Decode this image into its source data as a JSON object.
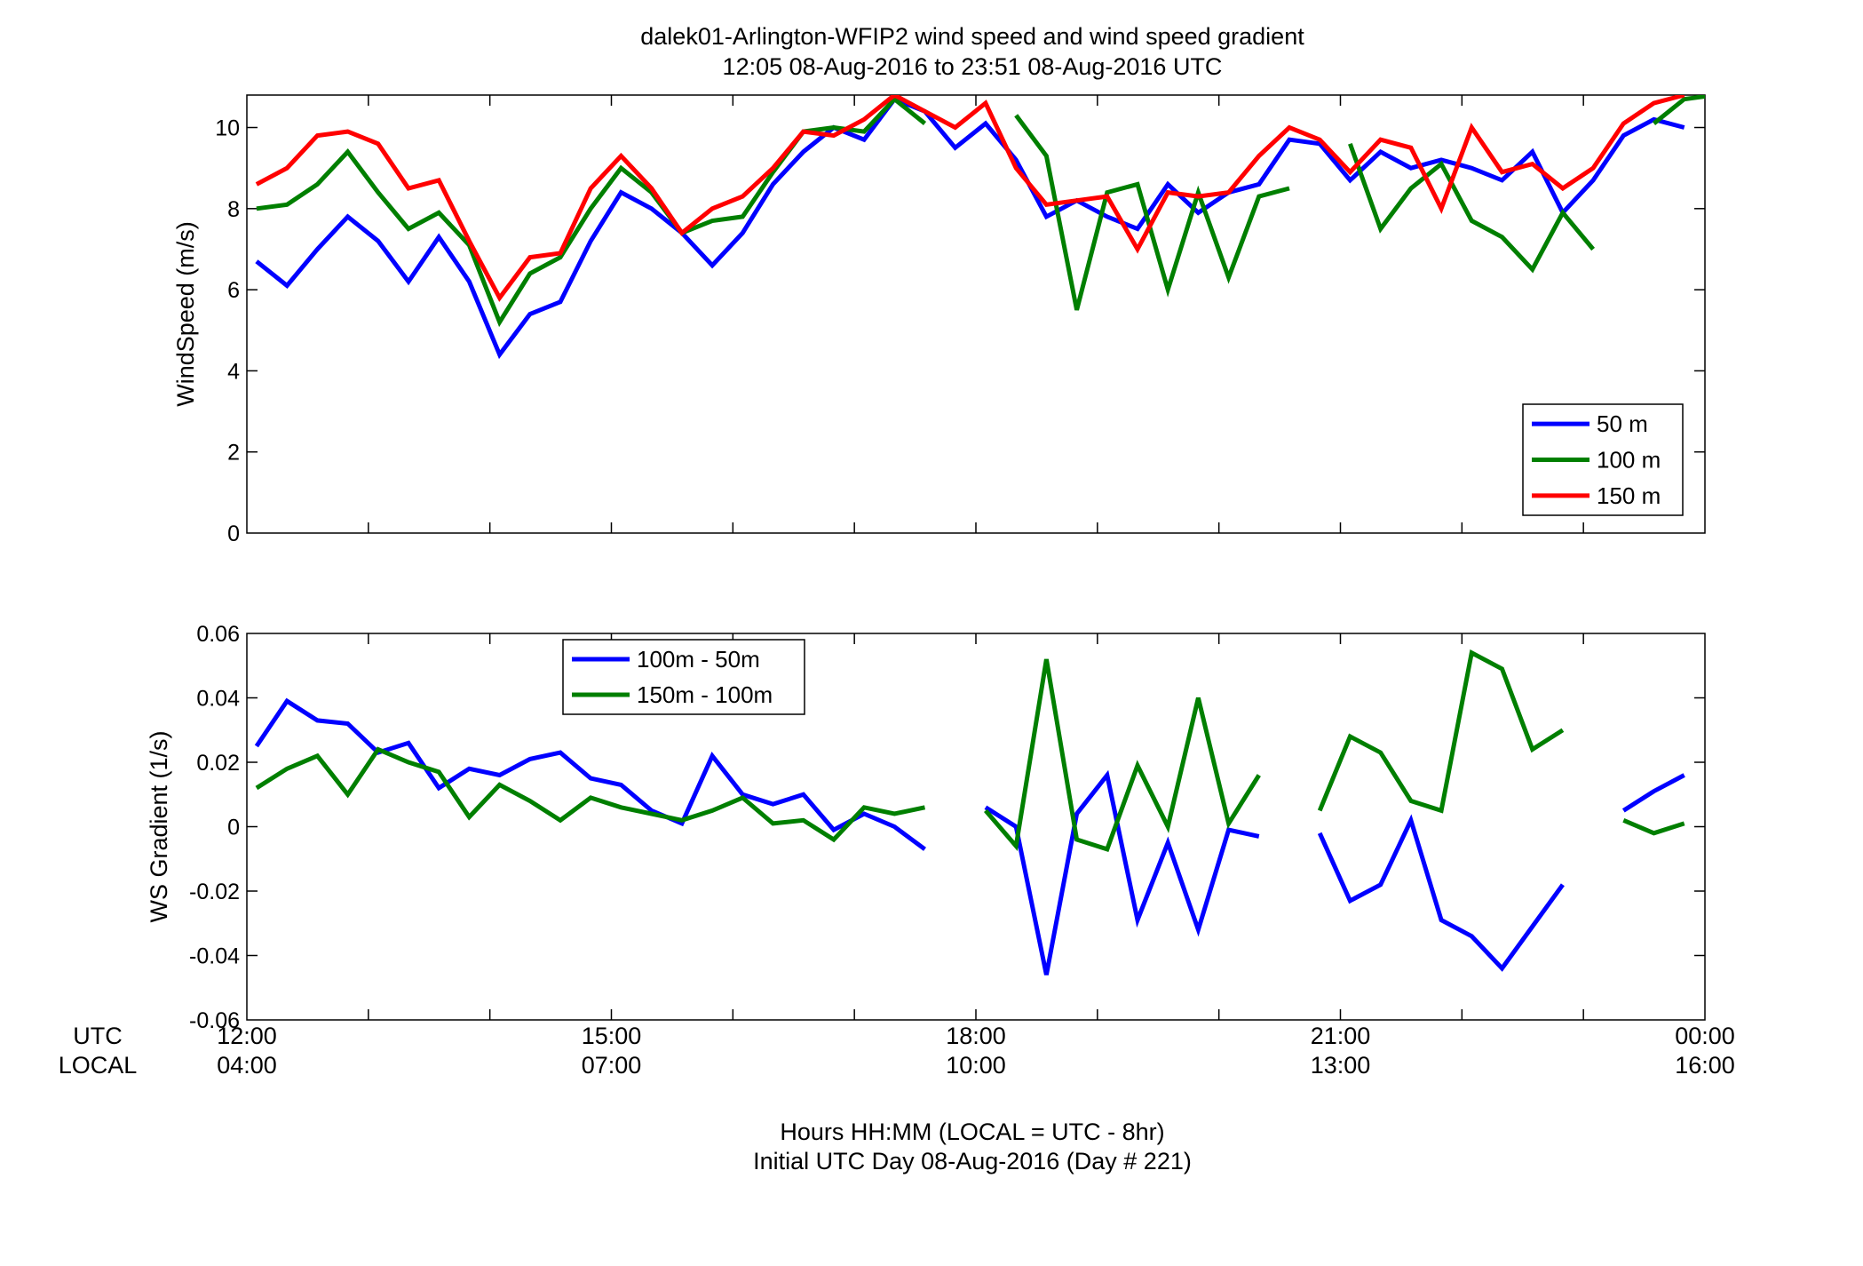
{
  "title_line1": "dalek01-Arlington-WFIP2  wind speed and wind speed gradient",
  "title_line2": "12:05 08-Aug-2016 to 23:51 08-Aug-2016  UTC",
  "footer_line1": "Hours HH:MM  (LOCAL = UTC - 8hr)",
  "footer_line2": "Initial UTC Day 08-Aug-2016 (Day # 221)",
  "row_labels": {
    "utc": "UTC",
    "local": "LOCAL"
  },
  "x_ticks": [
    {
      "hour": 12,
      "utc": "12:00",
      "local": "04:00"
    },
    {
      "hour": 15,
      "utc": "15:00",
      "local": "07:00"
    },
    {
      "hour": 18,
      "utc": "18:00",
      "local": "10:00"
    },
    {
      "hour": 21,
      "utc": "21:00",
      "local": "13:00"
    },
    {
      "hour": 24,
      "utc": "00:00",
      "local": "16:00"
    }
  ],
  "chart_data": [
    {
      "type": "line",
      "ylabel": "WindSpeed (m/s)",
      "xlim": [
        12,
        24
      ],
      "ylim": [
        0,
        10.8
      ],
      "yticks": [
        0,
        2,
        4,
        6,
        8,
        10
      ],
      "ytick_labels": [
        "0",
        "2",
        "4",
        "6",
        "8",
        "10"
      ],
      "legend_position": "bottom-right",
      "x": [
        12.08,
        12.33,
        12.58,
        12.83,
        13.08,
        13.33,
        13.58,
        13.83,
        14.08,
        14.33,
        14.58,
        14.83,
        15.08,
        15.33,
        15.58,
        15.83,
        16.08,
        16.33,
        16.58,
        16.83,
        17.08,
        17.33,
        17.58,
        17.83,
        18.08,
        18.33,
        18.58,
        18.83,
        19.08,
        19.33,
        19.58,
        19.83,
        20.08,
        20.33,
        20.58,
        20.83,
        21.08,
        21.33,
        21.58,
        21.83,
        22.08,
        22.33,
        22.58,
        22.83,
        23.08,
        23.33,
        23.58,
        23.83,
        24.08
      ],
      "series": [
        {
          "name": "50 m",
          "color": "#0000ff",
          "values": [
            6.7,
            6.1,
            7.0,
            7.8,
            7.2,
            6.2,
            7.3,
            6.2,
            4.4,
            5.4,
            5.7,
            7.2,
            8.4,
            8.0,
            7.4,
            6.6,
            7.4,
            8.6,
            9.4,
            10.0,
            9.7,
            10.7,
            10.4,
            9.5,
            10.1,
            9.2,
            7.8,
            8.2,
            7.8,
            7.5,
            8.6,
            7.9,
            8.4,
            8.6,
            9.7,
            9.6,
            8.7,
            9.4,
            9.0,
            9.2,
            9.0,
            8.7,
            9.4,
            7.9,
            8.7,
            9.8,
            10.2,
            10.0,
            null
          ]
        },
        {
          "name": "100 m",
          "color": "#007f00",
          "values": [
            8.0,
            8.1,
            8.6,
            9.4,
            8.4,
            7.5,
            7.9,
            7.1,
            5.2,
            6.4,
            6.8,
            8.0,
            9.0,
            8.4,
            7.4,
            7.7,
            7.8,
            8.9,
            9.9,
            10.0,
            9.9,
            10.7,
            10.1,
            null,
            null,
            10.3,
            9.3,
            5.5,
            8.4,
            8.6,
            6.0,
            8.4,
            6.3,
            8.3,
            8.5,
            null,
            9.6,
            7.5,
            8.5,
            9.1,
            7.7,
            7.3,
            6.5,
            7.9,
            7.0,
            null,
            10.1,
            10.7,
            10.8
          ]
        },
        {
          "name": "150 m",
          "color": "#ff0000",
          "values": [
            8.6,
            9.0,
            9.8,
            9.9,
            9.6,
            8.5,
            8.7,
            7.2,
            5.8,
            6.8,
            6.9,
            8.5,
            9.3,
            8.5,
            7.4,
            8.0,
            8.3,
            9.0,
            9.9,
            9.8,
            10.2,
            10.8,
            10.4,
            10.0,
            10.6,
            9.0,
            8.1,
            8.2,
            8.3,
            7.0,
            8.4,
            8.3,
            8.4,
            9.3,
            10.0,
            9.7,
            8.9,
            9.7,
            9.5,
            8.0,
            10.0,
            8.9,
            9.1,
            8.5,
            9.0,
            10.1,
            10.6,
            10.8,
            null
          ]
        }
      ]
    },
    {
      "type": "line",
      "ylabel": "WS Gradient (1/s)",
      "xlim": [
        12,
        24
      ],
      "ylim": [
        -0.06,
        0.06
      ],
      "yticks": [
        -0.06,
        -0.04,
        -0.02,
        0,
        0.02,
        0.04,
        0.06
      ],
      "ytick_labels": [
        "-0.06",
        "-0.04",
        "-0.02",
        "0",
        "0.02",
        "0.04",
        "0.06"
      ],
      "legend_position": "top-left",
      "x": [
        12.08,
        12.33,
        12.58,
        12.83,
        13.08,
        13.33,
        13.58,
        13.83,
        14.08,
        14.33,
        14.58,
        14.83,
        15.08,
        15.33,
        15.58,
        15.83,
        16.08,
        16.33,
        16.58,
        16.83,
        17.08,
        17.33,
        17.58,
        17.83,
        18.08,
        18.33,
        18.58,
        18.83,
        19.08,
        19.33,
        19.58,
        19.83,
        20.08,
        20.33,
        20.58,
        20.83,
        21.08,
        21.33,
        21.58,
        21.83,
        22.08,
        22.33,
        22.58,
        22.83,
        23.08,
        23.33,
        23.58,
        23.83,
        24.08
      ],
      "series": [
        {
          "name": "100m - 50m",
          "color": "#0000ff",
          "values": [
            0.025,
            0.039,
            0.033,
            0.032,
            0.023,
            0.026,
            0.012,
            0.018,
            0.016,
            0.021,
            0.023,
            0.015,
            0.013,
            0.005,
            0.001,
            0.022,
            0.01,
            0.007,
            0.01,
            -0.001,
            0.004,
            0.0,
            -0.007,
            null,
            0.006,
            0.0,
            -0.046,
            0.004,
            0.016,
            -0.029,
            -0.005,
            -0.032,
            -0.001,
            -0.003,
            null,
            -0.002,
            -0.023,
            -0.018,
            0.002,
            -0.029,
            -0.034,
            -0.044,
            -0.031,
            -0.018,
            null,
            0.005,
            0.011,
            0.016,
            null
          ]
        },
        {
          "name": "150m - 100m",
          "color": "#007f00",
          "values": [
            0.012,
            0.018,
            0.022,
            0.01,
            0.024,
            0.02,
            0.017,
            0.003,
            0.013,
            0.008,
            0.002,
            0.009,
            0.006,
            0.004,
            0.002,
            0.005,
            0.009,
            0.001,
            0.002,
            -0.004,
            0.006,
            0.004,
            0.006,
            null,
            0.005,
            -0.006,
            0.052,
            -0.004,
            -0.007,
            0.019,
            0.0,
            0.04,
            0.001,
            0.016,
            null,
            0.005,
            0.028,
            0.023,
            0.008,
            0.005,
            0.054,
            0.049,
            0.024,
            0.03,
            null,
            0.002,
            -0.002,
            0.001,
            null
          ]
        }
      ]
    }
  ]
}
